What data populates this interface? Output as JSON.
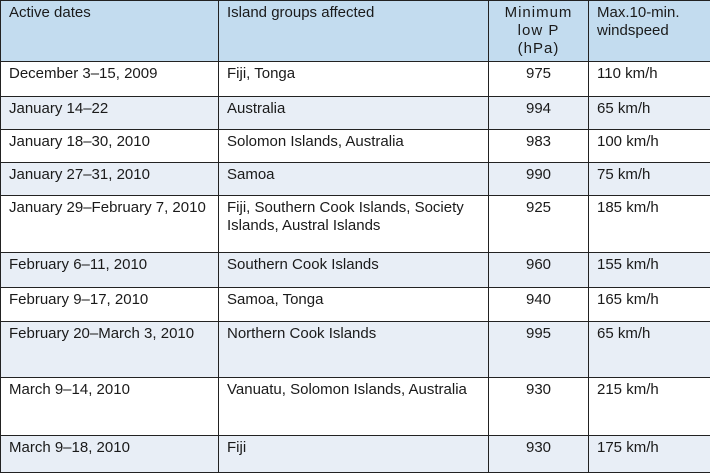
{
  "table": {
    "header": [
      "Active dates",
      "Island groups affected",
      "Minimum low P (hPa)",
      "Max.10-min. windspeed"
    ],
    "rows": [
      [
        "December 3–15, 2009",
        "Fiji, Tonga",
        975,
        "110 km/h"
      ],
      [
        "January 14–22",
        "Australia",
        994,
        "65 km/h"
      ],
      [
        "January 18–30, 2010",
        "Solomon Islands, Australia",
        983,
        "100 km/h"
      ],
      [
        "January 27–31, 2010",
        "Samoa",
        990,
        "75 km/h"
      ],
      [
        "January 29–February 7, 2010",
        "Fiji, Southern Cook Islands, Society Islands, Austral Islands",
        925,
        "185 km/h"
      ],
      [
        "February 6–11, 2010",
        "Southern Cook Islands",
        960,
        "155 km/h"
      ],
      [
        "February 9–17, 2010",
        "Samoa, Tonga",
        940,
        "165 km/h"
      ],
      [
        "February 20–March 3, 2010",
        "Northern Cook Islands",
        995,
        "65 km/h"
      ],
      [
        "March 9–14, 2010",
        "Vanuatu, Solomon Islands, Australia",
        930,
        "215 km/h"
      ],
      [
        "March 9–18, 2010",
        "Fiji",
        930,
        "175 km/h"
      ]
    ]
  }
}
